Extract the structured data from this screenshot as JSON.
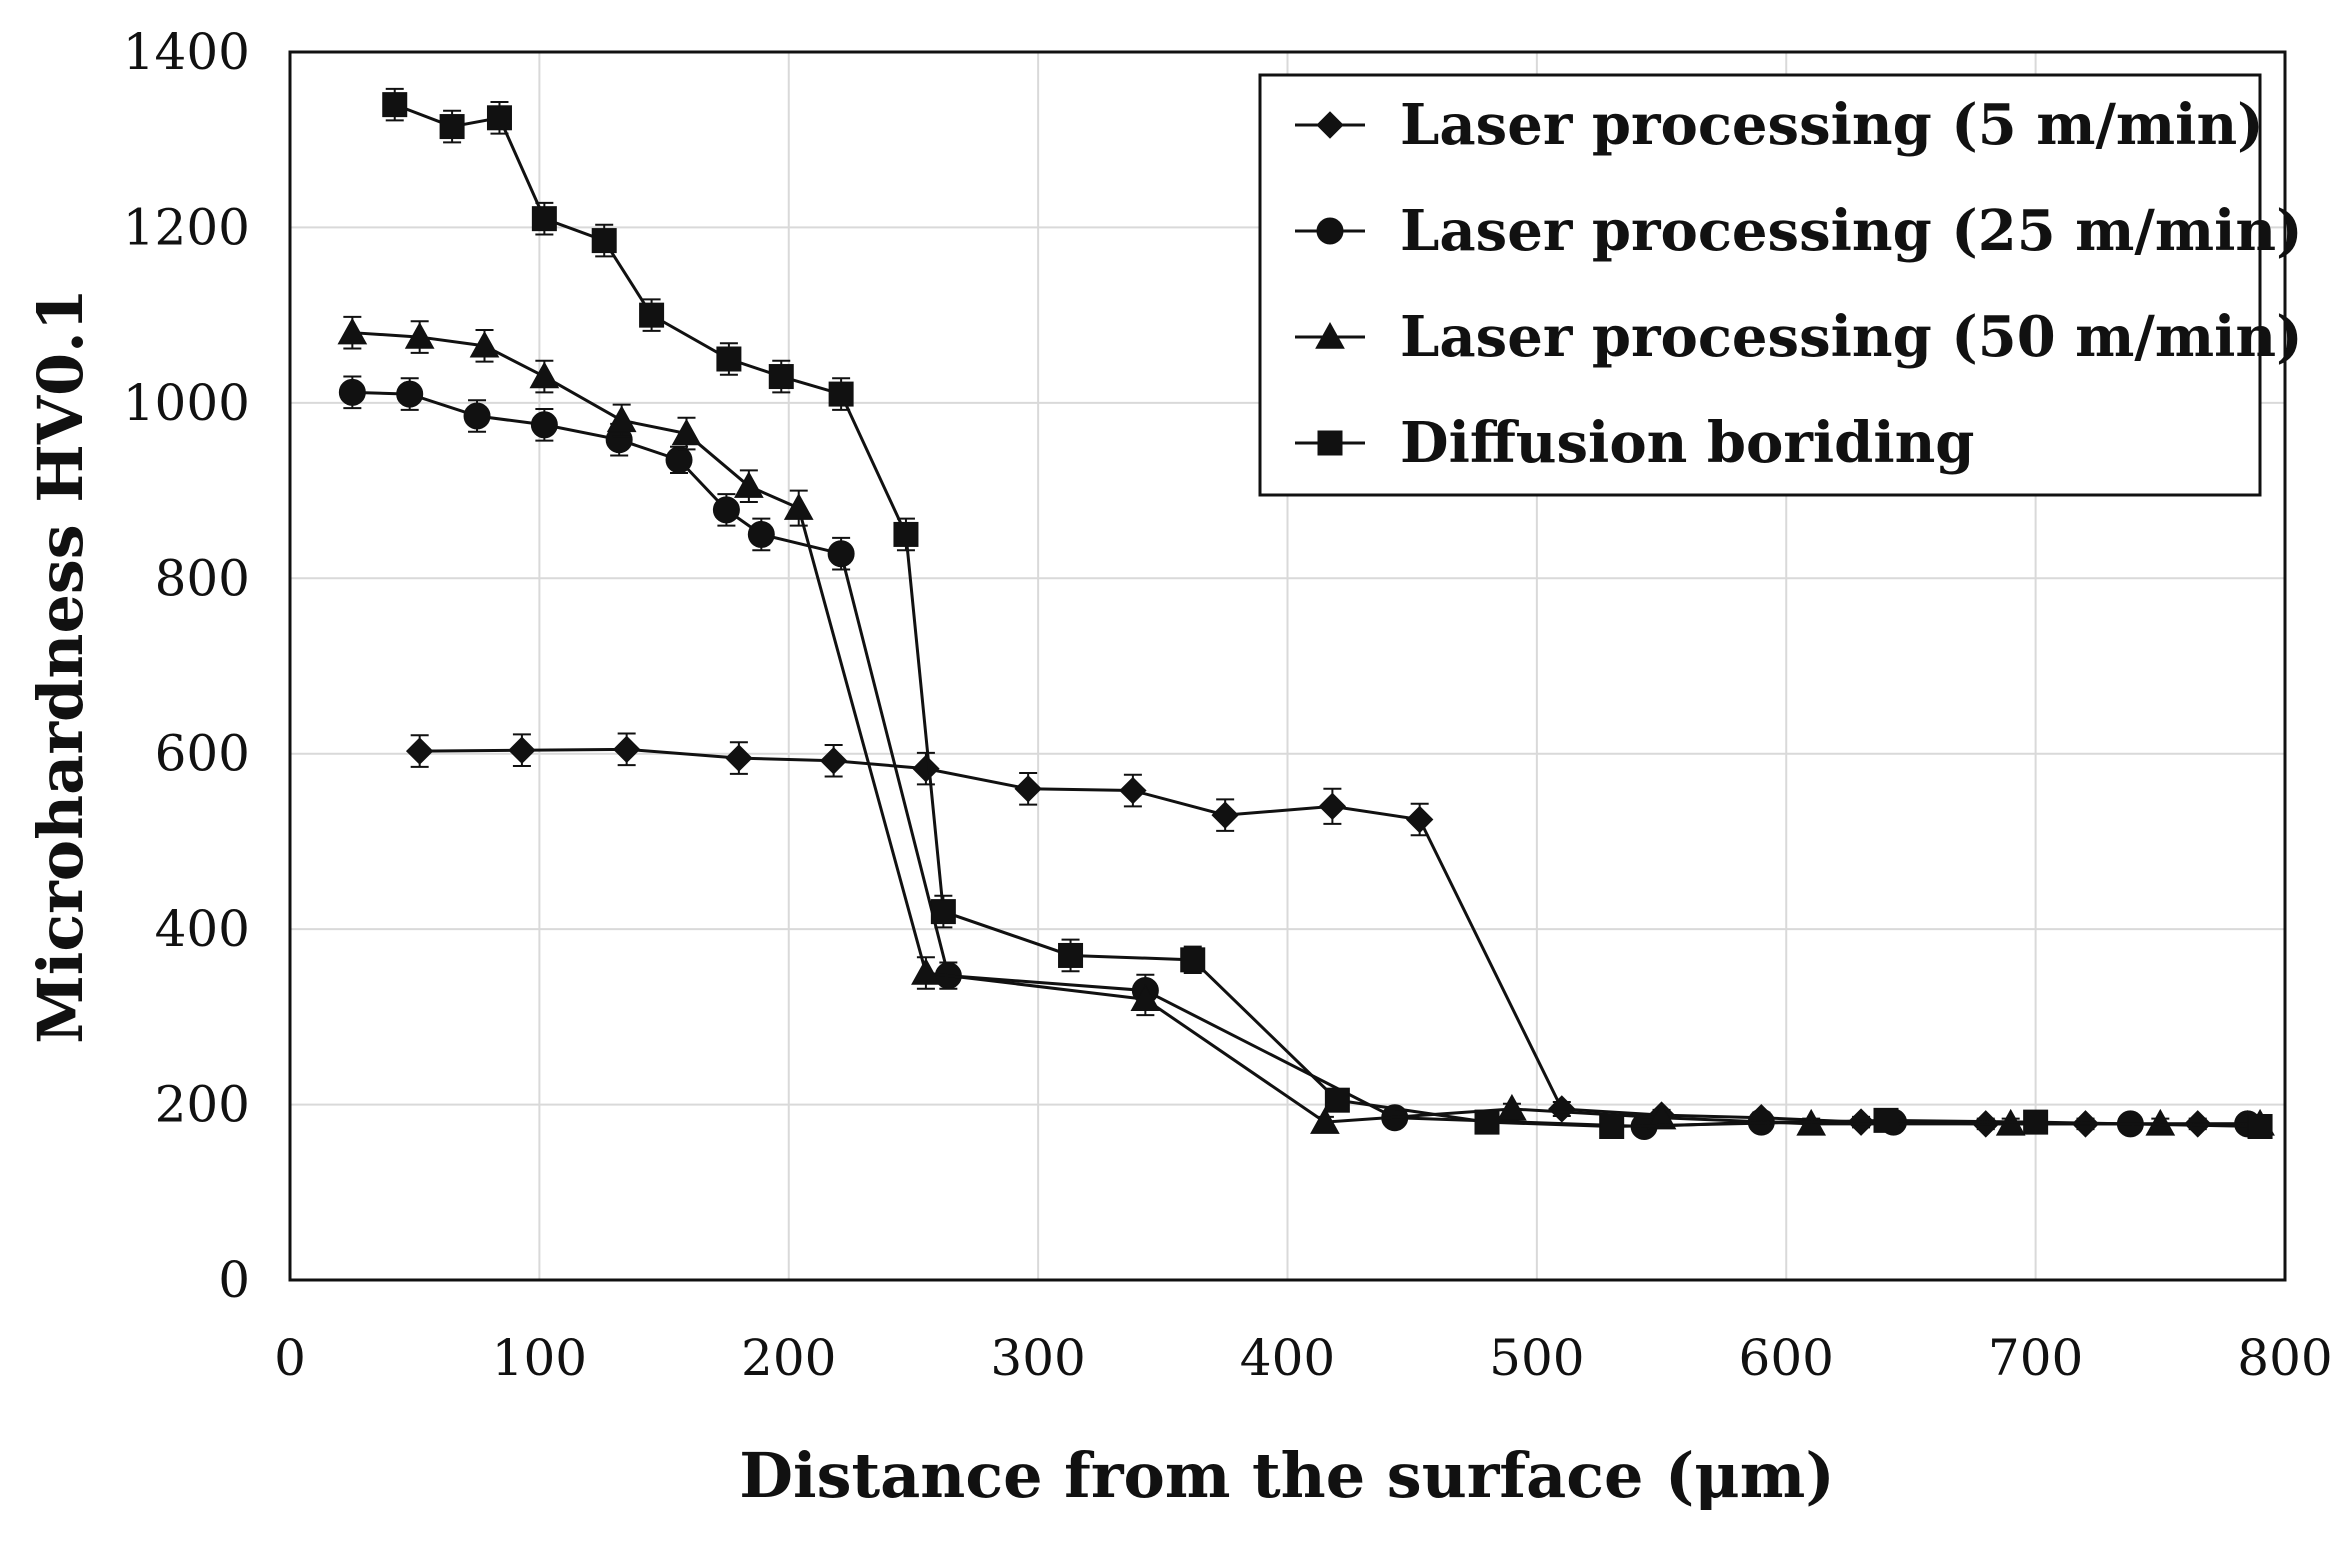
{
  "chart_data": {
    "type": "line",
    "title": "",
    "xlabel": "Distance from the surface (μm)",
    "ylabel": "Microhardness HV0.1",
    "xlim": [
      0,
      800
    ],
    "ylim": [
      0,
      1400
    ],
    "x_ticks": [
      "0",
      "100",
      "200",
      "300",
      "400",
      "500",
      "600",
      "700",
      "800"
    ],
    "y_ticks": [
      "0",
      "200",
      "400",
      "600",
      "800",
      "1000",
      "1200",
      "1400"
    ],
    "grid": true,
    "legend_position": "top-right",
    "series": [
      {
        "name": "Laser processing (5 m/min)",
        "marker": "diamond",
        "x": [
          52,
          93,
          135,
          180,
          218,
          255,
          296,
          338,
          375,
          418,
          453,
          510,
          550,
          590,
          630,
          680,
          720,
          765,
          785
        ],
        "y": [
          603,
          604,
          605,
          595,
          592,
          583,
          560,
          558,
          530,
          540,
          525,
          195,
          188,
          185,
          180,
          178,
          178,
          178,
          178
        ],
        "err": [
          18,
          18,
          18,
          18,
          18,
          18,
          18,
          18,
          18,
          20,
          18,
          8,
          6,
          6,
          6,
          6,
          6,
          6,
          6
        ]
      },
      {
        "name": "Laser processing (25 m/min)",
        "marker": "circle",
        "x": [
          25,
          48,
          75,
          102,
          132,
          156,
          175,
          189,
          221,
          264,
          343,
          443,
          543,
          590,
          643,
          738,
          785
        ],
        "y": [
          1012,
          1010,
          985,
          975,
          958,
          935,
          878,
          850,
          828,
          347,
          330,
          185,
          175,
          180,
          180,
          178,
          178
        ],
        "err": [
          18,
          18,
          18,
          18,
          18,
          15,
          18,
          18,
          18,
          15,
          18,
          6,
          6,
          6,
          6,
          6,
          6
        ]
      },
      {
        "name": "Laser processing (50 m/min)",
        "marker": "triangle",
        "x": [
          25,
          52,
          78,
          102,
          133,
          159,
          184,
          204,
          255,
          343,
          415,
          490,
          550,
          610,
          690,
          750,
          790
        ],
        "y": [
          1080,
          1075,
          1065,
          1030,
          980,
          965,
          905,
          880,
          350,
          320,
          180,
          195,
          185,
          178,
          178,
          178,
          178
        ],
        "err": [
          18,
          18,
          18,
          18,
          18,
          18,
          18,
          20,
          18,
          18,
          6,
          6,
          6,
          6,
          6,
          6,
          6
        ]
      },
      {
        "name": "Diffusion boriding",
        "marker": "square",
        "x": [
          42,
          65,
          84,
          102,
          126,
          145,
          176,
          197,
          221,
          247,
          262,
          313,
          362,
          420,
          480,
          530,
          640,
          700,
          790
        ],
        "y": [
          1340,
          1315,
          1325,
          1210,
          1185,
          1100,
          1050,
          1030,
          1010,
          850,
          420,
          370,
          365,
          205,
          180,
          175,
          182,
          180,
          175
        ],
        "err": [
          18,
          18,
          18,
          18,
          18,
          18,
          18,
          18,
          18,
          18,
          18,
          18,
          15,
          6,
          6,
          6,
          6,
          6,
          6
        ]
      }
    ]
  }
}
